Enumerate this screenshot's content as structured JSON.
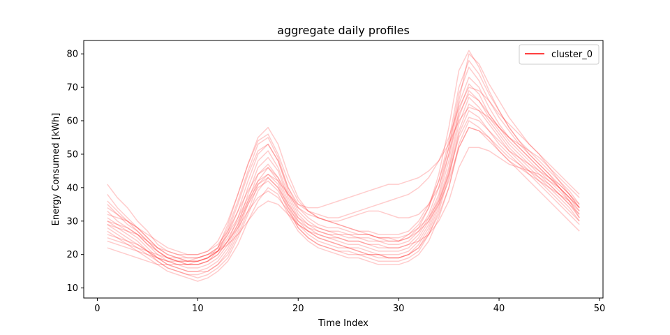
{
  "chart_data": {
    "type": "line",
    "title": "aggregate daily profiles",
    "xlabel": "Time Index",
    "ylabel": "Energy Consumed [kWh]",
    "xlim": [
      -1.35,
      50.35
    ],
    "ylim": [
      7.0,
      84.0
    ],
    "xticks": [
      0,
      10,
      20,
      30,
      40,
      50
    ],
    "yticks": [
      10,
      20,
      30,
      40,
      50,
      60,
      70,
      80
    ],
    "grid": false,
    "legend_position": "top-right",
    "legend": [
      {
        "label": "cluster_0",
        "color": "#ff0000"
      }
    ],
    "line_color": "#ff0000",
    "line_alpha": 0.2,
    "x": [
      1,
      2,
      3,
      4,
      5,
      6,
      7,
      8,
      9,
      10,
      11,
      12,
      13,
      14,
      15,
      16,
      17,
      18,
      19,
      20,
      21,
      22,
      23,
      24,
      25,
      26,
      27,
      28,
      29,
      30,
      31,
      32,
      33,
      34,
      35,
      36,
      37,
      38,
      39,
      40,
      41,
      42,
      43,
      44,
      45,
      46,
      47,
      48
    ],
    "series": [
      {
        "values": [
          41,
          37,
          34,
          30,
          27,
          23,
          21,
          20,
          19,
          19,
          20,
          22,
          28,
          36,
          45,
          53,
          55,
          49,
          40,
          34,
          31,
          29,
          28,
          28,
          27,
          26,
          26,
          25,
          25,
          24,
          26,
          29,
          34,
          42,
          54,
          70,
          78,
          74,
          68,
          63,
          58,
          54,
          51,
          48,
          45,
          42,
          39,
          35
        ]
      },
      {
        "values": [
          38,
          34,
          31,
          28,
          25,
          22,
          20,
          19,
          18,
          18,
          19,
          21,
          26,
          33,
          42,
          50,
          53,
          48,
          39,
          33,
          30,
          28,
          27,
          26,
          26,
          25,
          24,
          24,
          23,
          23,
          24,
          27,
          32,
          40,
          52,
          68,
          76,
          72,
          66,
          61,
          57,
          53,
          50,
          47,
          44,
          41,
          38,
          34
        ]
      },
      {
        "values": [
          35,
          32,
          29,
          27,
          24,
          21,
          19,
          18,
          17,
          17,
          18,
          20,
          24,
          31,
          40,
          48,
          51,
          46,
          38,
          32,
          29,
          27,
          26,
          25,
          24,
          24,
          23,
          22,
          22,
          22,
          23,
          26,
          31,
          38,
          50,
          65,
          73,
          70,
          64,
          59,
          55,
          52,
          49,
          46,
          43,
          40,
          37,
          33
        ]
      },
      {
        "values": [
          33,
          30,
          28,
          26,
          23,
          20,
          18,
          17,
          16,
          16,
          17,
          19,
          23,
          29,
          38,
          46,
          49,
          45,
          37,
          31,
          28,
          26,
          25,
          24,
          23,
          23,
          22,
          21,
          21,
          21,
          22,
          25,
          30,
          37,
          48,
          63,
          71,
          68,
          62,
          58,
          54,
          51,
          48,
          45,
          42,
          39,
          36,
          32
        ]
      },
      {
        "values": [
          31,
          29,
          27,
          25,
          22,
          19,
          17,
          16,
          15,
          15,
          16,
          18,
          22,
          28,
          36,
          44,
          47,
          43,
          36,
          30,
          27,
          25,
          24,
          23,
          22,
          22,
          21,
          20,
          20,
          20,
          21,
          24,
          29,
          36,
          46,
          61,
          69,
          66,
          61,
          57,
          53,
          50,
          47,
          44,
          41,
          38,
          35,
          31
        ]
      },
      {
        "values": [
          30,
          28,
          26,
          24,
          21,
          19,
          17,
          16,
          15,
          15,
          15,
          17,
          21,
          27,
          35,
          42,
          46,
          42,
          35,
          29,
          26,
          24,
          23,
          22,
          22,
          21,
          20,
          20,
          19,
          19,
          20,
          23,
          28,
          35,
          45,
          59,
          67,
          64,
          60,
          56,
          52,
          49,
          46,
          43,
          40,
          37,
          34,
          30
        ]
      },
      {
        "values": [
          29,
          27,
          25,
          23,
          21,
          18,
          16,
          15,
          14,
          14,
          15,
          17,
          20,
          26,
          33,
          41,
          44,
          41,
          34,
          28,
          25,
          23,
          22,
          21,
          21,
          20,
          20,
          19,
          19,
          19,
          20,
          22,
          27,
          34,
          44,
          57,
          65,
          63,
          59,
          55,
          51,
          48,
          45,
          42,
          39,
          36,
          33,
          30
        ]
      },
      {
        "values": [
          28,
          26,
          24,
          22,
          20,
          18,
          16,
          15,
          14,
          13,
          14,
          16,
          19,
          25,
          32,
          39,
          43,
          40,
          33,
          28,
          25,
          23,
          22,
          21,
          20,
          20,
          19,
          18,
          18,
          18,
          19,
          21,
          26,
          33,
          43,
          56,
          63,
          61,
          57,
          53,
          50,
          47,
          44,
          41,
          38,
          35,
          32,
          29
        ]
      },
      {
        "values": [
          32,
          31,
          30,
          28,
          25,
          22,
          20,
          19,
          18,
          18,
          19,
          21,
          25,
          30,
          36,
          41,
          43,
          40,
          35,
          31,
          29,
          28,
          27,
          27,
          26,
          26,
          26,
          25,
          25,
          25,
          26,
          28,
          31,
          36,
          44,
          55,
          61,
          60,
          57,
          54,
          51,
          49,
          47,
          45,
          43,
          41,
          38,
          35
        ]
      },
      {
        "values": [
          27,
          25,
          23,
          21,
          19,
          17,
          15,
          14,
          13,
          12,
          13,
          15,
          18,
          23,
          30,
          36,
          40,
          38,
          32,
          27,
          24,
          22,
          21,
          20,
          19,
          19,
          18,
          17,
          17,
          17,
          18,
          20,
          24,
          31,
          40,
          53,
          60,
          58,
          55,
          51,
          48,
          45,
          42,
          39,
          36,
          33,
          30,
          27
        ]
      },
      {
        "values": [
          26,
          25,
          24,
          23,
          21,
          19,
          18,
          17,
          17,
          17,
          18,
          20,
          24,
          29,
          35,
          40,
          42,
          39,
          34,
          30,
          28,
          27,
          26,
          26,
          25,
          25,
          25,
          24,
          24,
          24,
          25,
          27,
          30,
          35,
          42,
          52,
          58,
          57,
          55,
          52,
          49,
          47,
          45,
          43,
          41,
          38,
          36,
          33
        ]
      },
      {
        "values": [
          36,
          33,
          30,
          27,
          24,
          21,
          19,
          18,
          17,
          17,
          18,
          21,
          27,
          35,
          44,
          51,
          53,
          48,
          40,
          35,
          33,
          31,
          30,
          30,
          31,
          32,
          33,
          33,
          32,
          31,
          31,
          32,
          35,
          40,
          50,
          62,
          68,
          66,
          62,
          58,
          55,
          52,
          49,
          46,
          43,
          40,
          37,
          34
        ]
      },
      {
        "values": [
          30,
          29,
          28,
          26,
          23,
          21,
          19,
          18,
          18,
          18,
          19,
          22,
          29,
          38,
          47,
          54,
          56,
          50,
          42,
          36,
          33,
          32,
          31,
          31,
          32,
          33,
          34,
          35,
          36,
          37,
          38,
          40,
          43,
          48,
          55,
          64,
          70,
          69,
          66,
          62,
          59,
          56,
          53,
          50,
          47,
          44,
          41,
          38
        ]
      },
      {
        "values": [
          24,
          23,
          22,
          21,
          20,
          19,
          18,
          18,
          18,
          19,
          20,
          22,
          26,
          31,
          37,
          42,
          44,
          42,
          38,
          35,
          34,
          34,
          35,
          36,
          37,
          38,
          39,
          40,
          41,
          41,
          42,
          43,
          45,
          48,
          53,
          60,
          64,
          63,
          61,
          58,
          55,
          53,
          51,
          49,
          46,
          43,
          40,
          37
        ]
      },
      {
        "values": [
          34,
          32,
          30,
          28,
          26,
          24,
          22,
          21,
          20,
          20,
          21,
          23,
          27,
          33,
          39,
          44,
          46,
          43,
          38,
          34,
          32,
          31,
          30,
          29,
          28,
          27,
          27,
          26,
          26,
          26,
          27,
          30,
          35,
          42,
          52,
          66,
          80,
          77,
          71,
          66,
          61,
          57,
          53,
          50,
          46,
          42,
          38,
          34
        ]
      },
      {
        "values": [
          22,
          21,
          20,
          19,
          18,
          17,
          17,
          17,
          17,
          18,
          19,
          21,
          24,
          28,
          33,
          37,
          39,
          37,
          33,
          29,
          27,
          25,
          24,
          23,
          22,
          21,
          20,
          20,
          19,
          19,
          20,
          22,
          26,
          32,
          40,
          52,
          58,
          57,
          54,
          51,
          48,
          46,
          44,
          42,
          40,
          38,
          35,
          32
        ]
      },
      {
        "values": [
          29,
          28,
          27,
          26,
          24,
          22,
          21,
          20,
          20,
          20,
          21,
          24,
          30,
          38,
          47,
          55,
          58,
          53,
          44,
          37,
          33,
          31,
          30,
          29,
          28,
          27,
          26,
          25,
          24,
          24,
          25,
          28,
          34,
          44,
          58,
          75,
          81,
          76,
          69,
          63,
          58,
          54,
          50,
          47,
          44,
          40,
          36,
          31
        ]
      },
      {
        "values": [
          25,
          24,
          23,
          22,
          21,
          20,
          19,
          19,
          19,
          19,
          20,
          21,
          23,
          26,
          30,
          34,
          36,
          35,
          32,
          29,
          27,
          26,
          25,
          25,
          24,
          24,
          23,
          23,
          22,
          22,
          23,
          24,
          26,
          30,
          36,
          46,
          52,
          52,
          51,
          49,
          47,
          46,
          45,
          44,
          42,
          40,
          37,
          34
        ]
      }
    ]
  }
}
